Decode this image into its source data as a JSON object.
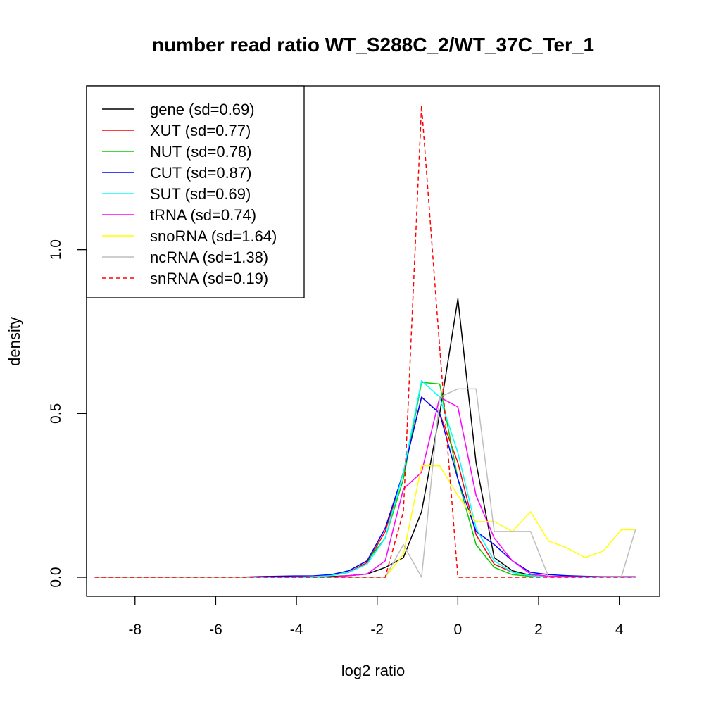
{
  "chart_data": {
    "type": "line",
    "title": "number read ratio WT_S288C_2/WT_37C_Ter_1",
    "xlabel": "log2 ratio",
    "ylabel": "density",
    "xlim": [
      -9.2,
      5.0
    ],
    "ylim": [
      -0.058,
      1.5
    ],
    "xticks": [
      -8,
      -6,
      -4,
      -2,
      0,
      2,
      4
    ],
    "xtick_labels": [
      "-8",
      "-6",
      "-4",
      "-2",
      "0",
      "2",
      "4"
    ],
    "yticks": [
      0.0,
      0.5,
      1.0
    ],
    "ytick_labels": [
      "0.0",
      "0.5",
      "1.0"
    ],
    "grid": false,
    "legend_position": "top-left",
    "x": [
      -9.0,
      -8.55,
      -8.1,
      -7.65,
      -7.2,
      -6.75,
      -6.3,
      -5.85,
      -5.4,
      -4.95,
      -4.5,
      -4.05,
      -3.6,
      -3.15,
      -2.7,
      -2.25,
      -1.8,
      -1.35,
      -0.9,
      -0.45,
      0.0,
      0.45,
      0.9,
      1.35,
      1.8,
      2.25,
      2.7,
      3.15,
      3.6,
      4.05,
      4.4
    ],
    "series": [
      {
        "name": "gene (sd=0.69)",
        "color": "#000000",
        "dash": "solid",
        "values": [
          0,
          0,
          0,
          0,
          0,
          0,
          0,
          0,
          0,
          0,
          0,
          0,
          0,
          0.002,
          0.005,
          0.01,
          0.03,
          0.06,
          0.2,
          0.5,
          0.85,
          0.35,
          0.06,
          0.02,
          0.006,
          0.003,
          0.002,
          0.001,
          0.001,
          0.001,
          0.001
        ]
      },
      {
        "name": "XUT (sd=0.77)",
        "color": "#ff0000",
        "dash": "solid",
        "values": [
          0,
          0,
          0,
          0,
          0,
          0,
          0,
          0,
          0,
          0,
          0,
          0,
          0.002,
          0.005,
          0.015,
          0.045,
          0.14,
          0.32,
          0.55,
          0.5,
          0.35,
          0.13,
          0.04,
          0.015,
          0.005,
          0.003,
          0.002,
          0.001,
          0.001,
          0.001,
          0.001
        ]
      },
      {
        "name": "NUT (sd=0.78)",
        "color": "#00cd00",
        "dash": "solid",
        "values": [
          0,
          0,
          0,
          0,
          0,
          0,
          0,
          0,
          0,
          0,
          0,
          0,
          0.002,
          0.007,
          0.02,
          0.05,
          0.12,
          0.3,
          0.595,
          0.59,
          0.3,
          0.1,
          0.03,
          0.008,
          0.003,
          0.002,
          0.001,
          0.001,
          0.001,
          0.001,
          0.001
        ]
      },
      {
        "name": "CUT (sd=0.87)",
        "color": "#0000ff",
        "dash": "solid",
        "values": [
          0,
          0,
          0,
          0,
          0,
          0,
          0,
          0,
          0,
          0.002,
          0.003,
          0.004,
          0.004,
          0.008,
          0.02,
          0.05,
          0.15,
          0.32,
          0.55,
          0.5,
          0.3,
          0.14,
          0.1,
          0.05,
          0.015,
          0.008,
          0.005,
          0.003,
          0.002,
          0.002,
          0.002
        ]
      },
      {
        "name": "SUT (sd=0.69)",
        "color": "#00ffff",
        "dash": "solid",
        "values": [
          0,
          0,
          0,
          0,
          0,
          0,
          0,
          0,
          0,
          0,
          0,
          0,
          0.002,
          0.005,
          0.015,
          0.04,
          0.12,
          0.32,
          0.6,
          0.55,
          0.38,
          0.15,
          0.05,
          0.015,
          0.005,
          0.002,
          0.001,
          0.001,
          0.001,
          0.001,
          0.001
        ]
      },
      {
        "name": "tRNA (sd=0.74)",
        "color": "#ff00ff",
        "dash": "solid",
        "values": [
          0,
          0,
          0,
          0,
          0,
          0,
          0,
          0,
          0,
          0,
          0,
          0,
          0,
          0,
          0.005,
          0.01,
          0.05,
          0.27,
          0.32,
          0.55,
          0.52,
          0.25,
          0.12,
          0.05,
          0.01,
          0.003,
          0.002,
          0.001,
          0.001,
          0.001,
          0.001
        ]
      },
      {
        "name": "snoRNA (sd=1.64)",
        "color": "#ffff00",
        "dash": "solid",
        "values": [
          0,
          0,
          0,
          0,
          0,
          0,
          0,
          0,
          0,
          0,
          0,
          0,
          0,
          0,
          0,
          0,
          0,
          0.07,
          0.34,
          0.34,
          0.25,
          0.17,
          0.17,
          0.14,
          0.2,
          0.11,
          0.09,
          0.06,
          0.08,
          0.145,
          0.145
        ]
      },
      {
        "name": "ncRNA (sd=1.38)",
        "color": "#bebebe",
        "dash": "solid",
        "values": [
          0,
          0,
          0,
          0,
          0,
          0,
          0,
          0,
          0,
          0,
          0,
          0,
          0,
          0,
          0,
          0,
          0,
          0.1,
          0,
          0.55,
          0.575,
          0.575,
          0.14,
          0.14,
          0.14,
          0,
          0,
          0,
          0,
          0,
          0.145
        ]
      },
      {
        "name": "snRNA (sd=0.19)",
        "color": "#ff0000",
        "dash": "dashed",
        "values": [
          0,
          0,
          0,
          0,
          0,
          0,
          0,
          0,
          0,
          0,
          0,
          0,
          0,
          0,
          0,
          0,
          0,
          0.2,
          1.44,
          0.7,
          0,
          0,
          0,
          0,
          0,
          0,
          0,
          0,
          0,
          0,
          0
        ]
      }
    ]
  }
}
